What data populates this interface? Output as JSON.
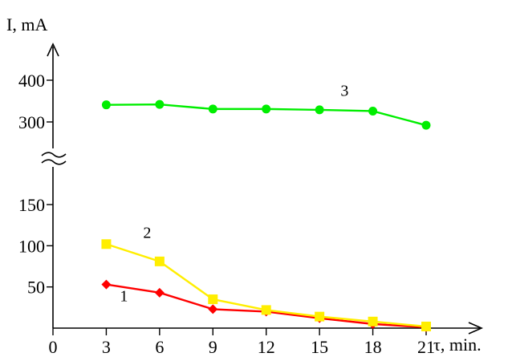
{
  "chart_data": {
    "type": "line",
    "xlabel": "τ, min.",
    "ylabel": "I, mA",
    "x": [
      3,
      6,
      9,
      12,
      15,
      18,
      21
    ],
    "xticks": [
      0,
      3,
      6,
      9,
      12,
      15,
      18,
      21
    ],
    "xlim": [
      0,
      21
    ],
    "yticks_lower": [
      50,
      100,
      150
    ],
    "yticks_upper": [
      300,
      400
    ],
    "ylim_lower": [
      0,
      150
    ],
    "ylim_upper": [
      300,
      400
    ],
    "broken_y_axis": true,
    "grid": false,
    "series": [
      {
        "name": "1",
        "color": "#ff0000",
        "marker": "diamond",
        "values": [
          53,
          43,
          23,
          20,
          12,
          5,
          1
        ]
      },
      {
        "name": "2",
        "color": "#ffee00",
        "marker": "square",
        "values": [
          102,
          81,
          35,
          22,
          14,
          8,
          2
        ]
      },
      {
        "name": "3",
        "color": "#00ee00",
        "marker": "circle",
        "values": [
          341,
          342,
          331,
          331,
          329,
          326,
          292
        ]
      }
    ]
  }
}
